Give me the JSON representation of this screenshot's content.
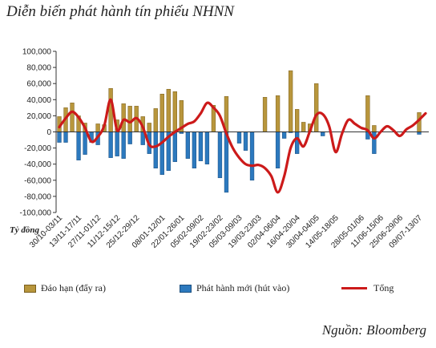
{
  "title": "Diễn biến phát hành tín phiếu NHNN",
  "source": "Nguồn: Bloomberg",
  "colors": {
    "maturity": "#b8963c",
    "issuance": "#2c79be",
    "total": "#cc1a1a"
  },
  "chart_data": {
    "type": "bar",
    "title": "Diễn biến phát hành tín phiếu NHNN",
    "ylabel": "Tỷ đồng",
    "ylim": [
      -100000,
      100000
    ],
    "yticks": [
      100000,
      80000,
      60000,
      40000,
      20000,
      0,
      -20000,
      -40000,
      -60000,
      -80000,
      -100000
    ],
    "ytick_labels": [
      "100,000",
      "80,000",
      "60,000",
      "40,000",
      "20,000",
      "0",
      "-20,000",
      "-40,000",
      "-60,000",
      "-80,000",
      "-100,000"
    ],
    "x_tick_labels": [
      "30/10-03/11",
      "13/11-17/11",
      "27/11-01/12",
      "11/12-15/12",
      "25/12-29/12",
      "08/01-12/01",
      "22/01-26/01",
      "05/02-09/02",
      "19/02-23/02",
      "05/03-09/03",
      "19/03-23/03",
      "02/04-06/04",
      "16/04-20/04",
      "30/04-04/05",
      "14/05-18/05",
      "28/05-01/06",
      "11/06-15/06",
      "25/06-29/06",
      "09/07-13/07"
    ],
    "legend": [
      "Đáo hạn (đẩy ra)",
      "Phát hành mới  (hút vào)",
      "Tổng"
    ],
    "legend_position": "bottom",
    "grid": false,
    "series": [
      {
        "name": "Đáo hạn (đẩy ra)",
        "type": "bar",
        "values": [
          19000,
          30000,
          36000,
          20000,
          11000,
          0,
          10000,
          9000,
          54000,
          15000,
          35000,
          32000,
          32000,
          19000,
          11000,
          29000,
          47000,
          53000,
          50000,
          39000,
          0,
          0,
          0,
          0,
          33000,
          0,
          44000,
          0,
          0,
          0,
          0,
          0,
          43000,
          0,
          45000,
          0,
          76000,
          28000,
          12000,
          10000,
          60000,
          0,
          0,
          0,
          0,
          0,
          0,
          0,
          45000,
          8000,
          0,
          0,
          0,
          0,
          0,
          0,
          24000,
          0
        ]
      },
      {
        "name": "Phát hành mới  (hút vào)",
        "type": "bar",
        "values": [
          -13000,
          -13000,
          0,
          -35000,
          -28000,
          -13000,
          -16000,
          0,
          -32000,
          -30000,
          -33000,
          -15000,
          0,
          -16000,
          -27000,
          -45000,
          -53000,
          -48000,
          -37000,
          -2000,
          -33000,
          -45000,
          -36000,
          -40000,
          0,
          -57000,
          -75000,
          0,
          -14000,
          -23000,
          -60000,
          0,
          0,
          0,
          -45000,
          -8000,
          -1000,
          -27000,
          0,
          0,
          0,
          -5000,
          0,
          0,
          0,
          0,
          0,
          0,
          -9000,
          -27000,
          0,
          0,
          0,
          0,
          0,
          0,
          -3000,
          0
        ]
      },
      {
        "name": "Tổng",
        "type": "line",
        "values": [
          6000,
          17000,
          25000,
          18000,
          5000,
          -12000,
          -6000,
          8000,
          40000,
          2000,
          15000,
          12000,
          17000,
          6000,
          -16000,
          -18000,
          -13000,
          -6000,
          0,
          5000,
          10000,
          13000,
          23000,
          36000,
          30000,
          20000,
          -2000,
          -20000,
          -32000,
          -40000,
          -42000,
          -41000,
          -45000,
          -55000,
          -75000,
          -55000,
          -20000,
          -8000,
          -18000,
          1000,
          21000,
          22000,
          7000,
          -25000,
          -2000,
          15000,
          10000,
          5000,
          2000,
          -8000,
          0,
          7000,
          2000,
          -5000,
          3000,
          8000,
          15000,
          23000
        ]
      }
    ]
  }
}
